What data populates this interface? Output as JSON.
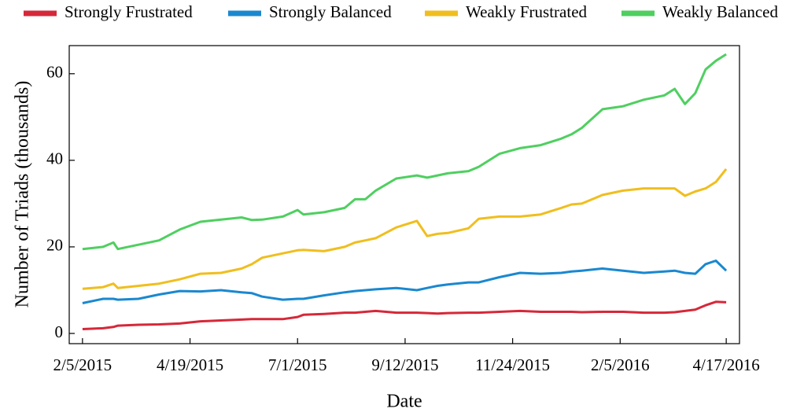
{
  "chart_data": {
    "type": "line",
    "xlabel": "Date",
    "ylabel": "Number of Triads (thousands)",
    "x": [
      "2/5/2015",
      "2/19/2015",
      "2/26/2015",
      "3/1/2015",
      "3/15/2015",
      "3/29/2015",
      "4/12/2015",
      "4/26/2015",
      "5/10/2015",
      "5/24/2015",
      "5/31/2015",
      "6/7/2015",
      "6/21/2015",
      "7/1/2015",
      "7/5/2015",
      "7/19/2015",
      "8/2/2015",
      "8/9/2015",
      "8/16/2015",
      "8/23/2015",
      "9/6/2015",
      "9/20/2015",
      "9/27/2015",
      "10/4/2015",
      "10/11/2015",
      "10/25/2015",
      "11/1/2015",
      "11/15/2015",
      "11/29/2015",
      "12/13/2015",
      "12/27/2015",
      "1/3/2016",
      "1/10/2016",
      "1/24/2016",
      "2/7/2016",
      "2/21/2016",
      "3/6/2016",
      "3/13/2016",
      "3/20/2016",
      "3/27/2016",
      "4/3/2016",
      "4/10/2016",
      "4/17/2016"
    ],
    "series": [
      {
        "name": "Strongly Frustrated",
        "color": "#d62839",
        "values": [
          1,
          1.2,
          1.5,
          1.8,
          2,
          2.1,
          2.3,
          2.8,
          3,
          3.2,
          3.3,
          3.3,
          3.3,
          3.8,
          4.3,
          4.5,
          4.8,
          4.8,
          5,
          5.2,
          4.8,
          4.8,
          4.7,
          4.6,
          4.7,
          4.8,
          4.8,
          5,
          5.2,
          5,
          5,
          5,
          4.9,
          5,
          5,
          4.8,
          4.8,
          4.9,
          5.2,
          5.5,
          6.5,
          7.3,
          7.2
        ]
      },
      {
        "name": "Strongly Balanced",
        "color": "#1a88d0",
        "values": [
          7,
          8,
          8,
          7.8,
          8,
          9,
          9.8,
          9.7,
          10,
          9.5,
          9.3,
          8.5,
          7.8,
          8,
          8,
          8.8,
          9.5,
          9.8,
          10,
          10.2,
          10.5,
          10,
          10.5,
          11,
          11.3,
          11.8,
          11.8,
          13,
          14,
          13.8,
          14,
          14.3,
          14.5,
          15,
          14.5,
          14,
          14.3,
          14.5,
          14,
          13.8,
          16,
          16.8,
          14.5
        ]
      },
      {
        "name": "Weakly Frustrated",
        "color": "#f0be1e",
        "values": [
          10.3,
          10.7,
          11.5,
          10.5,
          11,
          11.5,
          12.5,
          13.8,
          14,
          15,
          16,
          17.5,
          18.5,
          19.2,
          19.3,
          19,
          20,
          21,
          21.5,
          22,
          24.5,
          26,
          22.5,
          23,
          23.2,
          24.3,
          26.5,
          27,
          27,
          27.5,
          29,
          29.8,
          30,
          32,
          33,
          33.5,
          33.5,
          33.5,
          31.8,
          32.8,
          33.5,
          35,
          38
        ]
      },
      {
        "name": "Weakly Balanced",
        "color": "#4fcf60",
        "values": [
          19.5,
          20,
          21,
          19.5,
          20.5,
          21.5,
          24,
          25.8,
          26.3,
          26.8,
          26.2,
          26.3,
          27,
          28.5,
          27.5,
          28,
          29,
          31,
          31,
          33,
          35.8,
          36.5,
          36,
          36.5,
          37,
          37.5,
          38.5,
          41.5,
          42.8,
          43.5,
          45,
          46,
          47.5,
          51.8,
          52.5,
          54,
          55,
          56.5,
          53,
          55.5,
          61,
          63,
          64.5
        ]
      }
    ],
    "xlim": [
      "1/27/2015",
      "4/26/2016"
    ],
    "xticks": [
      "2/5/2015",
      "4/19/2015",
      "7/1/2015",
      "9/12/2015",
      "11/24/2015",
      "2/5/2016",
      "4/17/2016"
    ],
    "ylim": [
      -2.36,
      66.5
    ],
    "yticks": [
      0,
      20,
      40,
      60
    ],
    "legend": "top"
  }
}
